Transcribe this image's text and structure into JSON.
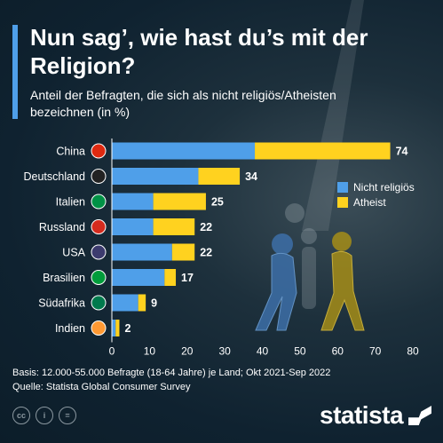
{
  "title": "Nun sag’, wie hast du’s mit der Religion?",
  "subtitle": "Anteil der Befragten, die sich als nicht religiös/Atheisten bezeichnen (in %)",
  "footer": {
    "basis": "Basis: 12.000-55.000 Befragte (18-64 Jahre) je Land; Okt 2021-Sep 2022",
    "source": "Quelle: Statista Global Consumer Survey"
  },
  "logo": "statista",
  "colors": {
    "nicht_religioes": "#4f9fe9",
    "atheist": "#ffd21f",
    "accent": "#4f9fe9"
  },
  "chart_data": {
    "type": "bar",
    "orientation": "horizontal",
    "stacked": true,
    "categories": [
      "China",
      "Deutschland",
      "Italien",
      "Russland",
      "USA",
      "Brasilien",
      "Südafrika",
      "Indien"
    ],
    "series": [
      {
        "name": "Nicht religiös",
        "values": [
          38,
          23,
          11,
          11,
          16,
          14,
          7,
          1
        ]
      },
      {
        "name": "Atheist",
        "values": [
          36,
          11,
          14,
          11,
          6,
          3,
          2,
          1
        ]
      }
    ],
    "totals": [
      "74",
      "34",
      "25",
      "22",
      "22",
      "17",
      "9",
      "2"
    ],
    "xlim": [
      0,
      80
    ],
    "xticks": [
      "0",
      "10",
      "20",
      "30",
      "40",
      "50",
      "60",
      "70",
      "80"
    ],
    "legend_position": "right",
    "grid": false
  }
}
